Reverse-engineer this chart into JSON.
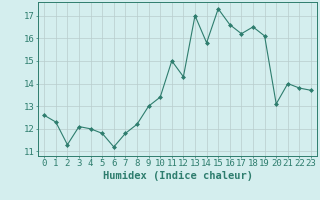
{
  "x": [
    0,
    1,
    2,
    3,
    4,
    5,
    6,
    7,
    8,
    9,
    10,
    11,
    12,
    13,
    14,
    15,
    16,
    17,
    18,
    19,
    20,
    21,
    22,
    23
  ],
  "y": [
    12.6,
    12.3,
    11.3,
    12.1,
    12.0,
    11.8,
    11.2,
    11.8,
    12.2,
    13.0,
    13.4,
    15.0,
    14.3,
    17.0,
    15.8,
    17.3,
    16.6,
    16.2,
    16.5,
    16.1,
    13.1,
    14.0,
    13.8,
    13.7
  ],
  "xlabel": "Humidex (Indice chaleur)",
  "xlim": [
    -0.5,
    23.5
  ],
  "ylim": [
    10.8,
    17.6
  ],
  "yticks": [
    11,
    12,
    13,
    14,
    15,
    16,
    17
  ],
  "xticks": [
    0,
    1,
    2,
    3,
    4,
    5,
    6,
    7,
    8,
    9,
    10,
    11,
    12,
    13,
    14,
    15,
    16,
    17,
    18,
    19,
    20,
    21,
    22,
    23
  ],
  "line_color": "#2e7d6e",
  "marker": "D",
  "marker_size": 2,
  "bg_color": "#d4eeee",
  "grid_color_major": "#b8cccc",
  "grid_color_minor": "#ccdcdc",
  "tick_label_fontsize": 6.5,
  "xlabel_fontsize": 7.5
}
